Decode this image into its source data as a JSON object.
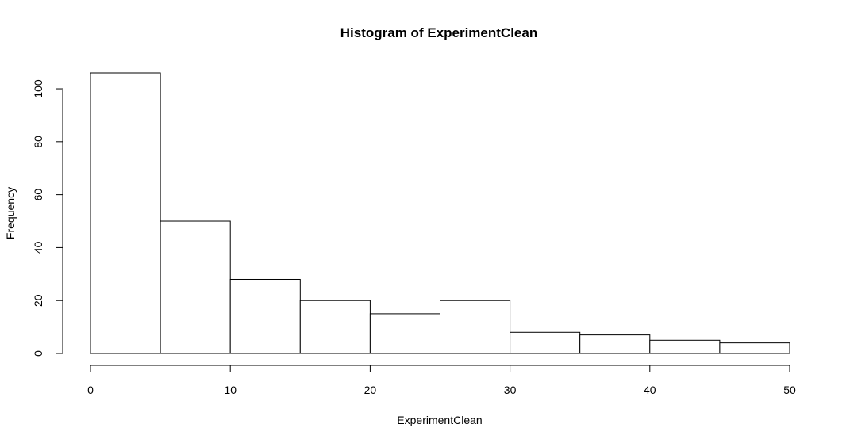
{
  "chart_data": {
    "type": "bar",
    "title": "Histogram of ExperimentClean",
    "xlabel": "ExperimentClean",
    "ylabel": "Frequency",
    "bin_edges": [
      0,
      5,
      10,
      15,
      20,
      25,
      30,
      35,
      40,
      45,
      50
    ],
    "values": [
      106,
      50,
      28,
      20,
      15,
      20,
      8,
      7,
      5,
      4
    ],
    "xlim": [
      0,
      50
    ],
    "ylim": [
      0,
      106
    ],
    "x_ticks": [
      0,
      10,
      20,
      30,
      40,
      50
    ],
    "y_ticks": [
      0,
      20,
      40,
      60,
      80,
      100
    ],
    "grid": false,
    "legend": "none",
    "colors": {
      "bar_fill": "#ffffff",
      "bar_stroke": "#000000"
    }
  }
}
